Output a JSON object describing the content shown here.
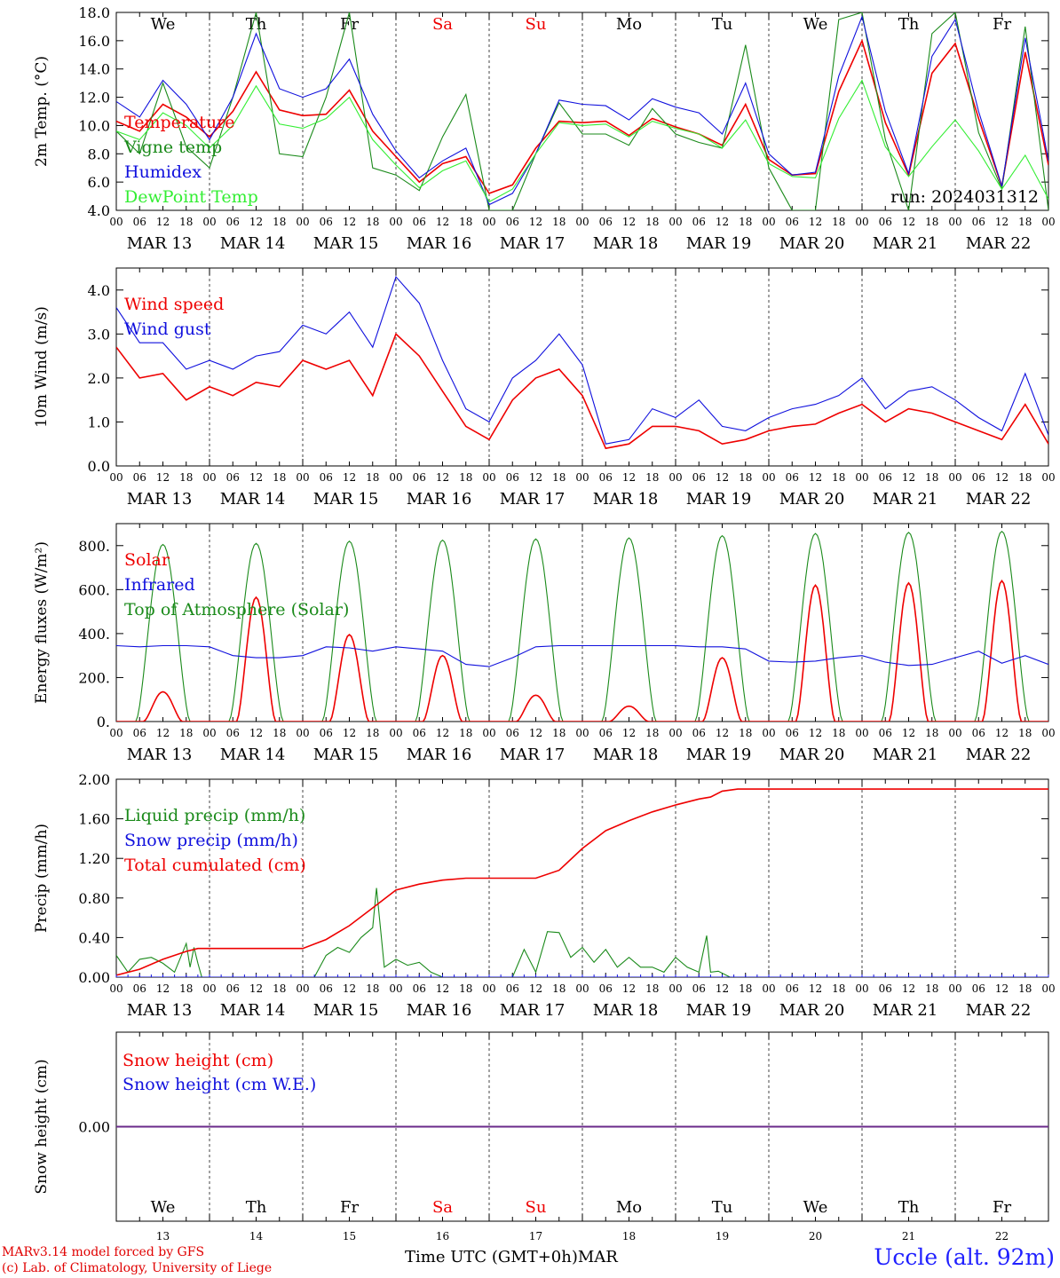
{
  "meta": {
    "run_label": "run: 2024031312",
    "credit_line1": "MARv3.14 model forced by GFS",
    "credit_line2": "(c) Lab. of Climatology, University of Liege",
    "time_axis_label": "Time UTC (GMT+0h)",
    "month_label": "MAR",
    "station": "Uccle (alt. 92m)"
  },
  "days": [
    {
      "abbr": "We",
      "date": "MAR 13",
      "num": "13",
      "weekend": false
    },
    {
      "abbr": "Th",
      "date": "MAR 14",
      "num": "14",
      "weekend": false
    },
    {
      "abbr": "Fr",
      "date": "MAR 15",
      "num": "15",
      "weekend": false
    },
    {
      "abbr": "Sa",
      "date": "MAR 16",
      "num": "16",
      "weekend": true
    },
    {
      "abbr": "Su",
      "date": "MAR 17",
      "num": "17",
      "weekend": true
    },
    {
      "abbr": "Mo",
      "date": "MAR 18",
      "num": "18",
      "weekend": false
    },
    {
      "abbr": "Tu",
      "date": "MAR 19",
      "num": "19",
      "weekend": false
    },
    {
      "abbr": "We",
      "date": "MAR 20",
      "num": "20",
      "weekend": false
    },
    {
      "abbr": "Th",
      "date": "MAR 21",
      "num": "21",
      "weekend": false
    },
    {
      "abbr": "Fr",
      "date": "MAR 22",
      "num": "22",
      "weekend": false
    }
  ],
  "hour_ticks": [
    "00",
    "06",
    "12",
    "18"
  ],
  "final_hour_tick": "00",
  "colors": {
    "red": "#ee0000",
    "green": "#1a8a1a",
    "blue": "#1010dd",
    "lightgreen": "#33ee33",
    "weekend": "#ee0000",
    "purple": "#6a2a8a"
  },
  "chart_data": [
    {
      "type": "line",
      "ylabel": "2m Temp. (°C)",
      "ylim": [
        4.0,
        18.0
      ],
      "yticks": [
        "4.0",
        "6.0",
        "8.0",
        "10.0",
        "12.0",
        "14.0",
        "16.0",
        "18.0"
      ],
      "x_unit": "hours since MAR 13 00 UTC",
      "series": [
        {
          "name": "Temperature",
          "color": "red",
          "x": [
            0,
            6,
            12,
            18,
            24,
            30,
            36,
            42,
            48,
            54,
            60,
            66,
            72,
            78,
            84,
            90,
            96,
            102,
            108,
            114,
            120,
            126,
            132,
            138,
            144,
            150,
            156,
            162,
            168,
            174,
            180,
            186,
            192,
            198,
            204,
            210,
            216,
            222,
            228,
            234,
            240
          ],
          "y": [
            10.3,
            9.6,
            11.5,
            10.6,
            9.2,
            11.0,
            13.8,
            11.1,
            10.7,
            10.8,
            12.5,
            9.6,
            7.8,
            6.0,
            7.3,
            7.8,
            5.2,
            5.8,
            8.4,
            10.3,
            10.2,
            10.3,
            9.3,
            10.5,
            9.9,
            9.4,
            8.6,
            11.5,
            7.6,
            6.5,
            6.6,
            12.4,
            16.0,
            10.2,
            6.5,
            13.7,
            15.8,
            10.5,
            5.7,
            15.2,
            7.2
          ]
        },
        {
          "name": "Vigne temp",
          "color": "green",
          "x": [
            0,
            6,
            12,
            18,
            24,
            30,
            36,
            42,
            48,
            54,
            60,
            66,
            72,
            78,
            84,
            90,
            96,
            102,
            108,
            114,
            120,
            126,
            132,
            138,
            144,
            150,
            156,
            162,
            168,
            174,
            180,
            186,
            192,
            198,
            204,
            210,
            216,
            222,
            228,
            234,
            240
          ],
          "y": [
            9.6,
            8.0,
            13.0,
            8.5,
            7.0,
            12.0,
            18.0,
            8.0,
            7.8,
            12.0,
            18.0,
            7.0,
            6.5,
            5.4,
            9.2,
            12.2,
            4.0,
            4.0,
            8.0,
            11.6,
            9.4,
            9.4,
            8.6,
            11.2,
            9.4,
            8.8,
            8.4,
            15.7,
            7.0,
            4.0,
            4.0,
            17.5,
            18.0,
            9.0,
            4.0,
            16.5,
            18.0,
            9.5,
            5.5,
            17.0,
            4.0
          ]
        },
        {
          "name": "Humidex",
          "color": "blue",
          "x": [
            0,
            6,
            12,
            18,
            24,
            30,
            36,
            42,
            48,
            54,
            60,
            66,
            72,
            78,
            84,
            90,
            96,
            102,
            108,
            114,
            120,
            126,
            132,
            138,
            144,
            150,
            156,
            162,
            168,
            174,
            180,
            186,
            192,
            198,
            204,
            210,
            216,
            222,
            228,
            234,
            240
          ],
          "y": [
            11.7,
            10.6,
            13.2,
            11.5,
            9.0,
            12.0,
            16.5,
            12.6,
            12.0,
            12.6,
            14.7,
            10.8,
            8.2,
            6.3,
            7.5,
            8.4,
            4.4,
            5.2,
            8.0,
            11.8,
            11.5,
            11.4,
            10.4,
            11.9,
            11.3,
            10.9,
            9.4,
            13.0,
            8.0,
            6.5,
            6.7,
            13.5,
            17.7,
            11.0,
            6.6,
            14.9,
            17.5,
            11.0,
            5.7,
            16.2,
            7.5
          ]
        },
        {
          "name": "DewPoint Temp",
          "color": "lightgreen",
          "x": [
            0,
            6,
            12,
            18,
            24,
            30,
            36,
            42,
            48,
            54,
            60,
            66,
            72,
            78,
            84,
            90,
            96,
            102,
            108,
            114,
            120,
            126,
            132,
            138,
            144,
            150,
            156,
            162,
            168,
            174,
            180,
            186,
            192,
            198,
            204,
            210,
            216,
            222,
            228,
            234,
            240
          ],
          "y": [
            9.6,
            9.0,
            10.9,
            10.0,
            8.4,
            10.0,
            12.8,
            10.1,
            9.8,
            10.5,
            12.0,
            9.0,
            7.2,
            5.6,
            6.8,
            7.5,
            4.6,
            5.5,
            8.0,
            10.2,
            10.0,
            10.1,
            9.2,
            10.3,
            9.8,
            9.4,
            8.4,
            10.4,
            7.3,
            6.4,
            6.3,
            10.5,
            13.2,
            8.5,
            6.4,
            8.5,
            10.4,
            8.2,
            5.5,
            7.9,
            4.8
          ]
        }
      ]
    },
    {
      "type": "line",
      "ylabel": "10m Wind (m/s)",
      "ylim": [
        0.0,
        4.5
      ],
      "yticks": [
        "0.0",
        "1.0",
        "2.0",
        "3.0",
        "4.0"
      ],
      "series": [
        {
          "name": "Wind speed",
          "color": "red",
          "x": [
            0,
            6,
            12,
            18,
            24,
            30,
            36,
            42,
            48,
            54,
            60,
            66,
            72,
            78,
            84,
            90,
            96,
            102,
            108,
            114,
            120,
            126,
            132,
            138,
            144,
            150,
            156,
            162,
            168,
            174,
            180,
            186,
            192,
            198,
            204,
            210,
            216,
            222,
            228,
            234,
            240
          ],
          "y": [
            2.7,
            2.0,
            2.1,
            1.5,
            1.8,
            1.6,
            1.9,
            1.8,
            2.4,
            2.2,
            2.4,
            1.6,
            3.0,
            2.5,
            1.7,
            0.9,
            0.6,
            1.5,
            2.0,
            2.2,
            1.6,
            0.4,
            0.5,
            0.9,
            0.9,
            0.8,
            0.5,
            0.6,
            0.8,
            0.9,
            0.95,
            1.2,
            1.4,
            1.0,
            1.3,
            1.2,
            1.0,
            0.8,
            0.6,
            1.4,
            0.5
          ]
        },
        {
          "name": "Wind gust",
          "color": "blue",
          "x": [
            0,
            6,
            12,
            18,
            24,
            30,
            36,
            42,
            48,
            54,
            60,
            66,
            72,
            78,
            84,
            90,
            96,
            102,
            108,
            114,
            120,
            126,
            132,
            138,
            144,
            150,
            156,
            162,
            168,
            174,
            180,
            186,
            192,
            198,
            204,
            210,
            216,
            222,
            228,
            234,
            240
          ],
          "y": [
            3.6,
            2.8,
            2.8,
            2.2,
            2.4,
            2.2,
            2.5,
            2.6,
            3.2,
            3.0,
            3.5,
            2.7,
            4.3,
            3.7,
            2.4,
            1.3,
            1.0,
            2.0,
            2.4,
            3.0,
            2.3,
            0.5,
            0.6,
            1.3,
            1.1,
            1.5,
            0.9,
            0.8,
            1.1,
            1.3,
            1.4,
            1.6,
            2.0,
            1.3,
            1.7,
            1.8,
            1.5,
            1.1,
            0.8,
            2.1,
            0.7
          ]
        }
      ]
    },
    {
      "type": "line",
      "ylabel": "Energy fluxes (W/m²)",
      "ylim": [
        0,
        900
      ],
      "yticks": [
        "0.",
        "200.",
        "400.",
        "600.",
        "800."
      ],
      "series": [
        {
          "name": "Solar",
          "color": "red",
          "day_peaks": [
            135,
            565,
            395,
            300,
            120,
            70,
            290,
            620,
            630,
            640
          ]
        },
        {
          "name": "Infrared",
          "color": "blue",
          "x": [
            0,
            6,
            12,
            18,
            24,
            30,
            36,
            42,
            48,
            54,
            60,
            66,
            72,
            78,
            84,
            90,
            96,
            102,
            108,
            114,
            120,
            126,
            132,
            138,
            144,
            150,
            156,
            162,
            168,
            174,
            180,
            186,
            192,
            198,
            204,
            210,
            216,
            222,
            228,
            234,
            240
          ],
          "y": [
            345,
            340,
            345,
            345,
            340,
            300,
            290,
            290,
            300,
            340,
            335,
            320,
            340,
            330,
            320,
            260,
            250,
            290,
            340,
            345,
            345,
            345,
            345,
            345,
            345,
            340,
            340,
            330,
            275,
            270,
            275,
            290,
            300,
            270,
            255,
            260,
            290,
            320,
            265,
            300,
            260
          ]
        },
        {
          "name": "Top of Atmosphere (Solar)",
          "color": "green",
          "day_peaks": [
            805,
            810,
            820,
            825,
            830,
            835,
            845,
            855,
            860,
            865
          ]
        }
      ]
    },
    {
      "type": "line",
      "ylabel": "Precip (mm/h)",
      "ylim": [
        0.0,
        2.0
      ],
      "yticks": [
        "0.00",
        "0.40",
        "0.80",
        "1.20",
        "1.60",
        "2.00"
      ],
      "series": [
        {
          "name": "Liquid precip (mm/h)",
          "color": "green",
          "x": [
            0,
            3,
            6,
            9,
            12,
            15,
            18,
            19,
            20,
            21,
            22,
            24,
            30,
            36,
            42,
            48,
            51,
            54,
            57,
            60,
            63,
            66,
            67,
            69,
            72,
            75,
            78,
            81,
            84,
            90,
            96,
            102,
            105,
            108,
            111,
            114,
            117,
            120,
            123,
            126,
            129,
            132,
            135,
            138,
            141,
            144,
            147,
            150,
            152,
            153,
            155,
            158,
            162,
            168,
            240
          ],
          "y": [
            0.22,
            0.05,
            0.18,
            0.2,
            0.14,
            0.05,
            0.34,
            0.1,
            0.3,
            0.14,
            0.0,
            0.0,
            0.0,
            0.0,
            0.0,
            0.0,
            0.0,
            0.22,
            0.3,
            0.25,
            0.4,
            0.5,
            0.9,
            0.1,
            0.18,
            0.12,
            0.15,
            0.05,
            0.0,
            0.0,
            0.0,
            0.0,
            0.28,
            0.05,
            0.46,
            0.45,
            0.2,
            0.3,
            0.15,
            0.28,
            0.1,
            0.2,
            0.1,
            0.1,
            0.05,
            0.2,
            0.1,
            0.05,
            0.42,
            0.05,
            0.06,
            0.0,
            0.0,
            0.0,
            0.0
          ]
        },
        {
          "name": "Snow precip (mm/h)",
          "color": "blue",
          "x": [
            0,
            240
          ],
          "y": [
            0.0,
            0.0
          ]
        },
        {
          "name": "Total cumulated (cm)",
          "color": "red",
          "x": [
            0,
            6,
            12,
            18,
            21,
            24,
            36,
            48,
            54,
            60,
            66,
            72,
            78,
            84,
            90,
            96,
            102,
            108,
            114,
            120,
            126,
            132,
            138,
            144,
            150,
            153,
            156,
            160,
            168,
            240
          ],
          "y": [
            0.02,
            0.08,
            0.18,
            0.26,
            0.29,
            0.29,
            0.29,
            0.29,
            0.38,
            0.52,
            0.7,
            0.88,
            0.94,
            0.98,
            1.0,
            1.0,
            1.0,
            1.0,
            1.08,
            1.3,
            1.48,
            1.58,
            1.67,
            1.74,
            1.8,
            1.82,
            1.88,
            1.9,
            1.9,
            1.9
          ]
        }
      ]
    },
    {
      "type": "line",
      "ylabel": "Snow height (cm)",
      "ylim": [
        -1.0,
        1.0
      ],
      "yticks": [
        "0.00"
      ],
      "series": [
        {
          "name": "Snow height (cm)",
          "color": "red",
          "x": [
            0,
            240
          ],
          "y": [
            0.0,
            0.0
          ]
        },
        {
          "name": "Snow height (cm W.E.)",
          "color": "blue",
          "x": [
            0,
            240
          ],
          "y": [
            0.0,
            0.0
          ]
        }
      ]
    }
  ]
}
